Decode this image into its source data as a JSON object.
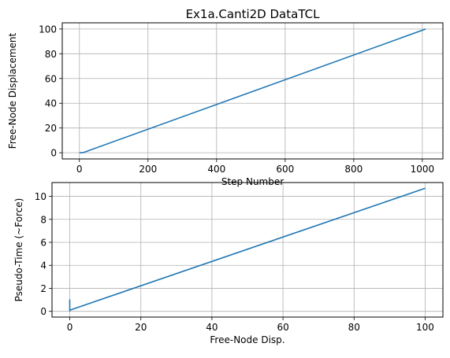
{
  "chart_data": [
    {
      "type": "line",
      "title": "Ex1a.Canti2D DataTCL",
      "xlabel": "Step Number",
      "ylabel": "Free-Node Displacement",
      "xlim": [
        -50,
        1060
      ],
      "ylim": [
        -5,
        105
      ],
      "xticks": [
        0,
        200,
        400,
        600,
        800,
        1000
      ],
      "yticks": [
        0,
        20,
        40,
        60,
        80,
        100
      ],
      "grid": true,
      "color": "#1f77b4",
      "series": [
        {
          "x": [
            0,
            10,
            1010
          ],
          "y": [
            0,
            0,
            100
          ]
        }
      ]
    },
    {
      "type": "line",
      "title": "",
      "xlabel": "Free-Node Disp.",
      "ylabel": "Pseudo-Time (~Force)",
      "xlim": [
        -5,
        105
      ],
      "ylim": [
        -0.5,
        11.2
      ],
      "xticks": [
        0,
        20,
        40,
        60,
        80,
        100
      ],
      "yticks": [
        0,
        2,
        4,
        6,
        8,
        10
      ],
      "grid": true,
      "color": "#1f77b4",
      "series": [
        {
          "x": [
            0,
            0,
            0,
            0,
            0,
            100
          ],
          "y": [
            0,
            1.0,
            0.05,
            0.8,
            0.1,
            10.7
          ]
        }
      ]
    }
  ]
}
